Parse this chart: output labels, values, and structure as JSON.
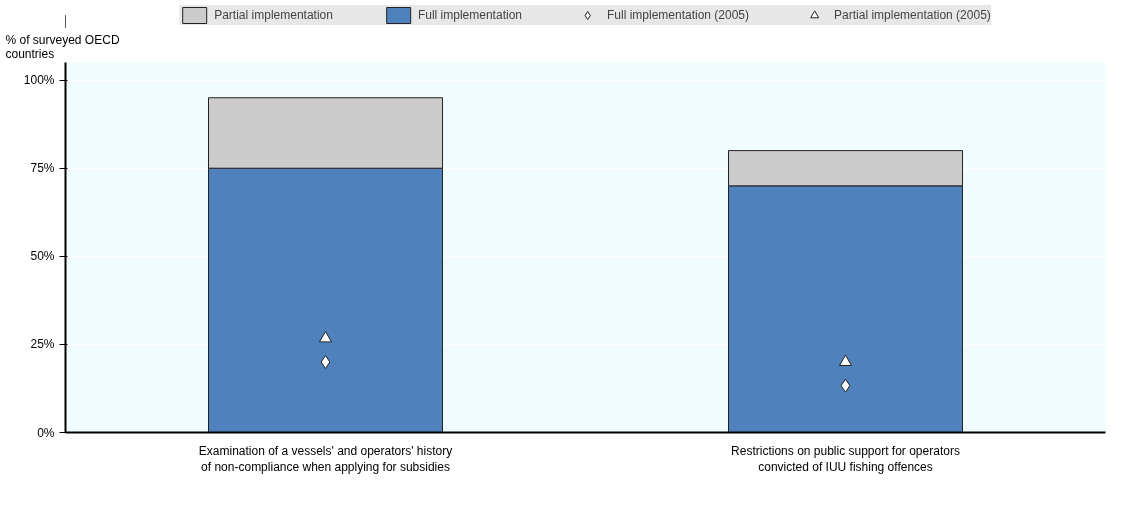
{
  "chart_data": {
    "type": "bar",
    "stacked": true,
    "ylabel": "% of surveyed OECD countries",
    "categories": [
      "Examination of a vessels' and operators' history of non-compliance when applying for subsidies",
      "Restrictions on public support for operators convicted of IUU fishing offences"
    ],
    "series": [
      {
        "name": "Full implementation",
        "color": "#4f81bd",
        "values": [
          75,
          70
        ]
      },
      {
        "name": "Partial implementation",
        "color": "#cccccc",
        "values": [
          20,
          10
        ]
      },
      {
        "name": "Full implementation (2005)",
        "type": "scatter",
        "marker": "diamond",
        "color": "#ffffff",
        "values": [
          20,
          13.3
        ]
      },
      {
        "name": "Partial implementation (2005)",
        "type": "scatter",
        "marker": "triangle",
        "color": "#ffffff",
        "values": [
          26.7,
          20
        ]
      }
    ],
    "ylim": [
      0,
      105
    ],
    "yticks": [
      {
        "value": 0,
        "label": "0%"
      },
      {
        "value": 25,
        "label": "25%"
      },
      {
        "value": 50,
        "label": "50%"
      },
      {
        "value": 75,
        "label": "75%"
      },
      {
        "value": 100,
        "label": "100%"
      }
    ],
    "grid": "y",
    "legend": "top"
  }
}
